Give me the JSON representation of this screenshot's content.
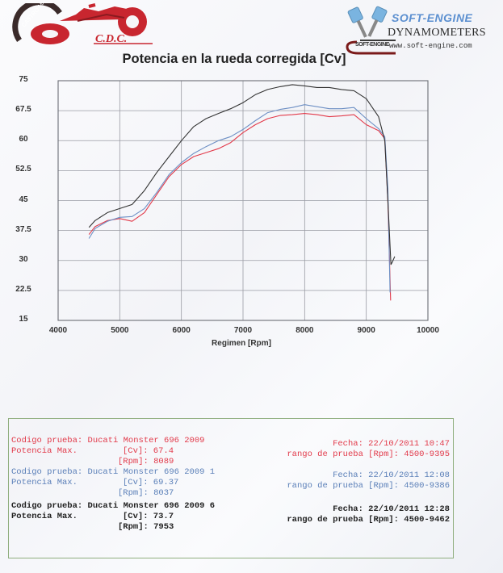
{
  "header": {
    "left_logo": {
      "ring_text": "CASTRO MAROTO, S.L.",
      "initials": "C.D.C.",
      "icon": "motorcycle-logo-icon"
    },
    "right_logo": {
      "brand": "SOFT-ENGINE",
      "subtitle": "DYNAMOMETERS",
      "url": "www.soft-engine.com",
      "small_mark": "SOFT-ENGINE",
      "icon": "pistons-logo-icon"
    }
  },
  "chart_data": {
    "type": "line",
    "title": "Potencia en la rueda corregida [Cv]",
    "xlabel": "Regimen [Rpm]",
    "ylabel": "",
    "xlim": [
      4000,
      10000
    ],
    "ylim": [
      15,
      75
    ],
    "x_ticks": [
      "4000",
      "5000",
      "6000",
      "7000",
      "8000",
      "9000",
      "10000"
    ],
    "y_ticks": [
      "75",
      "67.5",
      "60",
      "52.5",
      "45",
      "37.5",
      "30",
      "22.5",
      "15"
    ],
    "grid": true,
    "legend": "none (series identified in info box below by color)",
    "series": [
      {
        "name": "Ducati Monster 696 2009",
        "color": "#e23a4a",
        "x": [
          4500,
          4600,
          4800,
          5000,
          5200,
          5400,
          5600,
          5800,
          6000,
          6200,
          6400,
          6600,
          6800,
          7000,
          7200,
          7400,
          7600,
          7800,
          8000,
          8200,
          8400,
          8600,
          8800,
          9000,
          9200,
          9300,
          9350,
          9395
        ],
        "y": [
          36.5,
          38.5,
          40.0,
          40.5,
          39.8,
          42.0,
          46.5,
          51.0,
          54.0,
          56.0,
          57.0,
          58.0,
          59.5,
          62.0,
          64.0,
          65.5,
          66.3,
          66.5,
          66.8,
          66.5,
          66.0,
          66.2,
          66.5,
          64.0,
          62.5,
          60.5,
          45.0,
          20.0
        ]
      },
      {
        "name": "Ducati Monster 696 2009 1",
        "color": "#6d8fc4",
        "x": [
          4500,
          4600,
          4800,
          5000,
          5200,
          5400,
          5600,
          5800,
          6000,
          6200,
          6400,
          6600,
          6800,
          7000,
          7200,
          7400,
          7600,
          7800,
          8000,
          8200,
          8400,
          8600,
          8800,
          9000,
          9200,
          9300,
          9350,
          9386
        ],
        "y": [
          35.5,
          38.0,
          39.8,
          40.8,
          41.0,
          43.0,
          47.0,
          51.5,
          54.5,
          56.8,
          58.5,
          60.0,
          61.0,
          62.8,
          65.0,
          67.0,
          67.8,
          68.3,
          69.0,
          68.5,
          68.0,
          68.0,
          68.3,
          65.5,
          63.0,
          61.0,
          48.0,
          22.0
        ]
      },
      {
        "name": "Ducati Monster 696 2009 6",
        "color": "#333333",
        "x": [
          4500,
          4600,
          4800,
          5000,
          5200,
          5400,
          5600,
          5800,
          6000,
          6200,
          6400,
          6600,
          6800,
          7000,
          7200,
          7400,
          7600,
          7800,
          8000,
          8200,
          8400,
          8600,
          8800,
          9000,
          9200,
          9300,
          9350,
          9400,
          9420,
          9462
        ],
        "y": [
          38.3,
          40.0,
          42.0,
          43.0,
          44.0,
          47.5,
          52.0,
          56.0,
          60.0,
          63.5,
          65.5,
          66.8,
          68.0,
          69.5,
          71.5,
          72.8,
          73.5,
          74.0,
          73.7,
          73.3,
          73.3,
          72.8,
          72.5,
          70.5,
          66.0,
          60.0,
          45.0,
          29.0,
          29.5,
          31.0
        ]
      }
    ]
  },
  "info_box": {
    "tests": [
      {
        "color": "#e23a4a",
        "codigo_label": "Codigo prueba:",
        "codigo_value": "Ducati Monster 696 2009",
        "potencia_label": "Potencia Max.",
        "cv_label": "[Cv]:",
        "cv_value": "67.4",
        "rpm_label": "[Rpm]:",
        "rpm_value": "8089",
        "fecha_label": "Fecha:",
        "fecha_value": "22/10/2011 10:47",
        "rango_label": "rango de prueba [Rpm]:",
        "rango_value": "4500-9395"
      },
      {
        "color": "#5a7fb8",
        "codigo_label": "Codigo prueba:",
        "codigo_value": "Ducati Monster 696 2009 1",
        "potencia_label": "Potencia Max.",
        "cv_label": "[Cv]:",
        "cv_value": "69.37",
        "rpm_label": "[Rpm]:",
        "rpm_value": "8037",
        "fecha_label": "Fecha:",
        "fecha_value": "22/10/2011 12:08",
        "rango_label": "rango de prueba [Rpm]:",
        "rango_value": "4500-9386"
      },
      {
        "color": "#222222",
        "codigo_label": "Codigo prueba:",
        "codigo_value": "Ducati Monster 696 2009 6",
        "potencia_label": "Potencia Max.",
        "cv_label": "[Cv]:",
        "cv_value": "73.7",
        "rpm_label": "[Rpm]:",
        "rpm_value": "7953",
        "fecha_label": "Fecha:",
        "fecha_value": "22/10/2011 12:28",
        "rango_label": "rango de prueba [Rpm]:",
        "rango_value": "4500-9462"
      }
    ]
  }
}
